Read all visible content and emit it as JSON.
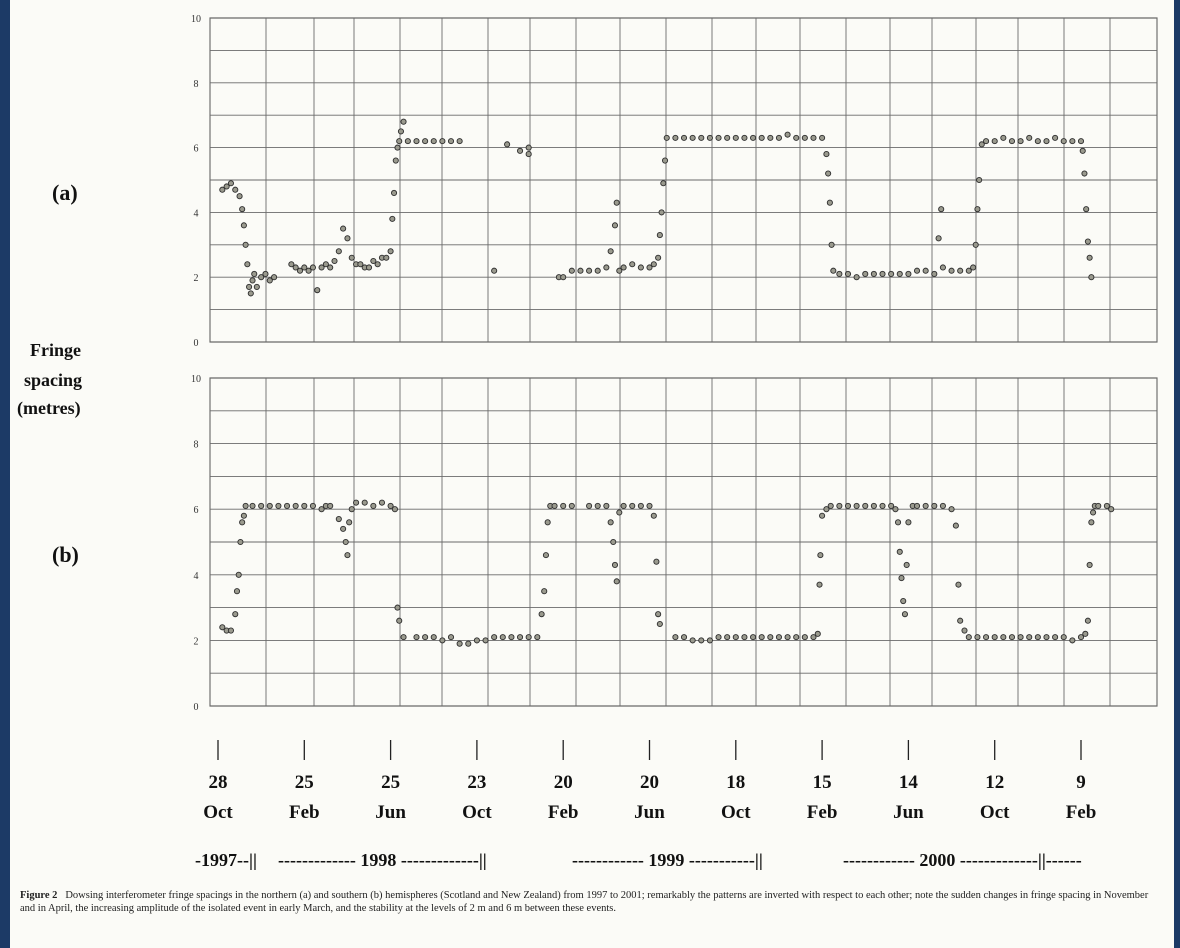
{
  "caption": {
    "label": "Figure 2",
    "text": "Dowsing interferometer fringe spacings in the northern (a) and southern (b) hemispheres (Scotland and New Zealand) from 1997 to 2001; remarkably the patterns are inverted with respect to each other; note the sudden changes in fringe spacing in November and in April, the increasing amplitude of the isolated event in early March, and the stability at the levels of 2 m and 6 m between these events."
  },
  "ylabel_lines": [
    "Fringe",
    "spacing",
    "(metres)"
  ],
  "date_ticks": [
    {
      "day": "28",
      "month": "Oct"
    },
    {
      "day": "25",
      "month": "Feb"
    },
    {
      "day": "25",
      "month": "Jun"
    },
    {
      "day": "23",
      "month": "Oct"
    },
    {
      "day": "20",
      "month": "Feb"
    },
    {
      "day": "20",
      "month": "Jun"
    },
    {
      "day": "18",
      "month": "Oct"
    },
    {
      "day": "15",
      "month": "Feb"
    },
    {
      "day": "14",
      "month": "Jun"
    },
    {
      "day": "12",
      "month": "Oct"
    },
    {
      "day": "9",
      "month": "Feb"
    }
  ],
  "year_bar": [
    "-1997--||",
    "------------- 1998 -------------||",
    "------------ 1999 -----------||",
    "------------ 2000 -------------||------"
  ],
  "chart_data": [
    {
      "type": "scatter",
      "panel_label": "(a)",
      "ylim": [
        0,
        10
      ],
      "yticks": [
        "0",
        "2",
        "4",
        "6",
        "8",
        "10"
      ],
      "xlim": [
        0,
        11.2
      ],
      "grid": true,
      "x_unit": "tick index (28 Oct 1997 = 0, each step ≈ 4 months)",
      "points": [
        [
          0.05,
          4.7
        ],
        [
          0.1,
          4.8
        ],
        [
          0.15,
          4.9
        ],
        [
          0.2,
          4.7
        ],
        [
          0.25,
          4.5
        ],
        [
          0.28,
          4.1
        ],
        [
          0.3,
          3.6
        ],
        [
          0.32,
          3.0
        ],
        [
          0.34,
          2.4
        ],
        [
          0.36,
          1.7
        ],
        [
          0.38,
          1.5
        ],
        [
          0.4,
          1.9
        ],
        [
          0.42,
          2.1
        ],
        [
          0.45,
          1.7
        ],
        [
          0.5,
          2.0
        ],
        [
          0.55,
          2.1
        ],
        [
          0.6,
          1.9
        ],
        [
          0.65,
          2.0
        ],
        [
          0.85,
          2.4
        ],
        [
          0.9,
          2.3
        ],
        [
          0.95,
          2.2
        ],
        [
          1.0,
          2.3
        ],
        [
          1.05,
          2.2
        ],
        [
          1.1,
          2.3
        ],
        [
          1.15,
          1.6
        ],
        [
          1.2,
          2.3
        ],
        [
          1.25,
          2.4
        ],
        [
          1.3,
          2.3
        ],
        [
          1.35,
          2.5
        ],
        [
          1.4,
          2.8
        ],
        [
          1.45,
          3.5
        ],
        [
          1.5,
          3.2
        ],
        [
          1.55,
          2.6
        ],
        [
          1.6,
          2.4
        ],
        [
          1.65,
          2.4
        ],
        [
          1.7,
          2.3
        ],
        [
          1.75,
          2.3
        ],
        [
          1.8,
          2.5
        ],
        [
          1.85,
          2.4
        ],
        [
          1.9,
          2.6
        ],
        [
          1.95,
          2.6
        ],
        [
          2.0,
          2.8
        ],
        [
          2.02,
          3.8
        ],
        [
          2.04,
          4.6
        ],
        [
          2.06,
          5.6
        ],
        [
          2.08,
          6.0
        ],
        [
          2.1,
          6.2
        ],
        [
          2.12,
          6.5
        ],
        [
          2.15,
          6.8
        ],
        [
          2.2,
          6.2
        ],
        [
          2.3,
          6.2
        ],
        [
          2.4,
          6.2
        ],
        [
          2.5,
          6.2
        ],
        [
          2.6,
          6.2
        ],
        [
          2.7,
          6.2
        ],
        [
          2.8,
          6.2
        ],
        [
          3.2,
          2.2
        ],
        [
          3.35,
          6.1
        ],
        [
          3.5,
          5.9
        ],
        [
          3.6,
          5.8
        ],
        [
          3.6,
          6.0
        ],
        [
          3.95,
          2.0
        ],
        [
          4.0,
          2.0
        ],
        [
          4.1,
          2.2
        ],
        [
          4.2,
          2.2
        ],
        [
          4.3,
          2.2
        ],
        [
          4.4,
          2.2
        ],
        [
          4.5,
          2.3
        ],
        [
          4.55,
          2.8
        ],
        [
          4.6,
          3.6
        ],
        [
          4.62,
          4.3
        ],
        [
          4.65,
          2.2
        ],
        [
          4.7,
          2.3
        ],
        [
          4.8,
          2.4
        ],
        [
          4.9,
          2.3
        ],
        [
          5.0,
          2.3
        ],
        [
          5.05,
          2.4
        ],
        [
          5.1,
          2.6
        ],
        [
          5.12,
          3.3
        ],
        [
          5.14,
          4.0
        ],
        [
          5.16,
          4.9
        ],
        [
          5.18,
          5.6
        ],
        [
          5.2,
          6.3
        ],
        [
          5.3,
          6.3
        ],
        [
          5.4,
          6.3
        ],
        [
          5.5,
          6.3
        ],
        [
          5.6,
          6.3
        ],
        [
          5.7,
          6.3
        ],
        [
          5.8,
          6.3
        ],
        [
          5.9,
          6.3
        ],
        [
          6.0,
          6.3
        ],
        [
          6.1,
          6.3
        ],
        [
          6.2,
          6.3
        ],
        [
          6.3,
          6.3
        ],
        [
          6.4,
          6.3
        ],
        [
          6.5,
          6.3
        ],
        [
          6.6,
          6.4
        ],
        [
          6.7,
          6.3
        ],
        [
          6.8,
          6.3
        ],
        [
          6.9,
          6.3
        ],
        [
          7.0,
          6.3
        ],
        [
          7.05,
          5.8
        ],
        [
          7.07,
          5.2
        ],
        [
          7.09,
          4.3
        ],
        [
          7.11,
          3.0
        ],
        [
          7.13,
          2.2
        ],
        [
          7.2,
          2.1
        ],
        [
          7.3,
          2.1
        ],
        [
          7.4,
          2.0
        ],
        [
          7.5,
          2.1
        ],
        [
          7.6,
          2.1
        ],
        [
          7.7,
          2.1
        ],
        [
          7.8,
          2.1
        ],
        [
          7.9,
          2.1
        ],
        [
          8.0,
          2.1
        ],
        [
          8.1,
          2.2
        ],
        [
          8.2,
          2.2
        ],
        [
          8.3,
          2.1
        ],
        [
          8.35,
          3.2
        ],
        [
          8.38,
          4.1
        ],
        [
          8.4,
          2.3
        ],
        [
          8.5,
          2.2
        ],
        [
          8.6,
          2.2
        ],
        [
          8.7,
          2.2
        ],
        [
          8.75,
          2.3
        ],
        [
          8.78,
          3.0
        ],
        [
          8.8,
          4.1
        ],
        [
          8.82,
          5.0
        ],
        [
          8.85,
          6.1
        ],
        [
          8.9,
          6.2
        ],
        [
          9.0,
          6.2
        ],
        [
          9.1,
          6.3
        ],
        [
          9.2,
          6.2
        ],
        [
          9.3,
          6.2
        ],
        [
          9.4,
          6.3
        ],
        [
          9.5,
          6.2
        ],
        [
          9.6,
          6.2
        ],
        [
          9.7,
          6.3
        ],
        [
          9.8,
          6.2
        ],
        [
          9.9,
          6.2
        ],
        [
          10.0,
          6.2
        ],
        [
          10.02,
          5.9
        ],
        [
          10.04,
          5.2
        ],
        [
          10.06,
          4.1
        ],
        [
          10.08,
          3.1
        ],
        [
          10.1,
          2.6
        ],
        [
          10.12,
          2.0
        ]
      ]
    },
    {
      "type": "scatter",
      "panel_label": "(b)",
      "ylim": [
        0,
        10
      ],
      "yticks": [
        "0",
        "2",
        "4",
        "6",
        "8",
        "10"
      ],
      "xlim": [
        0,
        11.2
      ],
      "grid": true,
      "x_unit": "tick index (28 Oct 1997 = 0, each step ≈ 4 months)",
      "points": [
        [
          0.05,
          2.4
        ],
        [
          0.1,
          2.3
        ],
        [
          0.15,
          2.3
        ],
        [
          0.2,
          2.8
        ],
        [
          0.22,
          3.5
        ],
        [
          0.24,
          4.0
        ],
        [
          0.26,
          5.0
        ],
        [
          0.28,
          5.6
        ],
        [
          0.3,
          5.8
        ],
        [
          0.32,
          6.1
        ],
        [
          0.4,
          6.1
        ],
        [
          0.5,
          6.1
        ],
        [
          0.6,
          6.1
        ],
        [
          0.7,
          6.1
        ],
        [
          0.8,
          6.1
        ],
        [
          0.9,
          6.1
        ],
        [
          1.0,
          6.1
        ],
        [
          1.1,
          6.1
        ],
        [
          1.2,
          6.0
        ],
        [
          1.25,
          6.1
        ],
        [
          1.3,
          6.1
        ],
        [
          1.4,
          5.7
        ],
        [
          1.45,
          5.4
        ],
        [
          1.48,
          5.0
        ],
        [
          1.5,
          4.6
        ],
        [
          1.52,
          5.6
        ],
        [
          1.55,
          6.0
        ],
        [
          1.6,
          6.2
        ],
        [
          1.7,
          6.2
        ],
        [
          1.8,
          6.1
        ],
        [
          1.9,
          6.2
        ],
        [
          2.0,
          6.1
        ],
        [
          2.05,
          6.0
        ],
        [
          2.08,
          3.0
        ],
        [
          2.1,
          2.6
        ],
        [
          2.15,
          2.1
        ],
        [
          2.3,
          2.1
        ],
        [
          2.4,
          2.1
        ],
        [
          2.5,
          2.1
        ],
        [
          2.6,
          2.0
        ],
        [
          2.7,
          2.1
        ],
        [
          2.8,
          1.9
        ],
        [
          2.9,
          1.9
        ],
        [
          3.0,
          2.0
        ],
        [
          3.1,
          2.0
        ],
        [
          3.2,
          2.1
        ],
        [
          3.3,
          2.1
        ],
        [
          3.4,
          2.1
        ],
        [
          3.5,
          2.1
        ],
        [
          3.6,
          2.1
        ],
        [
          3.7,
          2.1
        ],
        [
          3.75,
          2.8
        ],
        [
          3.78,
          3.5
        ],
        [
          3.8,
          4.6
        ],
        [
          3.82,
          5.6
        ],
        [
          3.85,
          6.1
        ],
        [
          3.9,
          6.1
        ],
        [
          4.0,
          6.1
        ],
        [
          4.1,
          6.1
        ],
        [
          4.3,
          6.1
        ],
        [
          4.4,
          6.1
        ],
        [
          4.5,
          6.1
        ],
        [
          4.55,
          5.6
        ],
        [
          4.58,
          5.0
        ],
        [
          4.6,
          4.3
        ],
        [
          4.62,
          3.8
        ],
        [
          4.65,
          5.9
        ],
        [
          4.7,
          6.1
        ],
        [
          4.8,
          6.1
        ],
        [
          4.9,
          6.1
        ],
        [
          5.0,
          6.1
        ],
        [
          5.05,
          5.8
        ],
        [
          5.08,
          4.4
        ],
        [
          5.1,
          2.8
        ],
        [
          5.12,
          2.5
        ],
        [
          5.3,
          2.1
        ],
        [
          5.4,
          2.1
        ],
        [
          5.5,
          2.0
        ],
        [
          5.6,
          2.0
        ],
        [
          5.7,
          2.0
        ],
        [
          5.8,
          2.1
        ],
        [
          5.9,
          2.1
        ],
        [
          6.0,
          2.1
        ],
        [
          6.1,
          2.1
        ],
        [
          6.2,
          2.1
        ],
        [
          6.3,
          2.1
        ],
        [
          6.4,
          2.1
        ],
        [
          6.5,
          2.1
        ],
        [
          6.6,
          2.1
        ],
        [
          6.7,
          2.1
        ],
        [
          6.8,
          2.1
        ],
        [
          6.9,
          2.1
        ],
        [
          6.95,
          2.2
        ],
        [
          6.97,
          3.7
        ],
        [
          6.98,
          4.6
        ],
        [
          7.0,
          5.8
        ],
        [
          7.05,
          6.0
        ],
        [
          7.1,
          6.1
        ],
        [
          7.2,
          6.1
        ],
        [
          7.3,
          6.1
        ],
        [
          7.4,
          6.1
        ],
        [
          7.5,
          6.1
        ],
        [
          7.6,
          6.1
        ],
        [
          7.7,
          6.1
        ],
        [
          7.8,
          6.1
        ],
        [
          7.85,
          6.0
        ],
        [
          7.88,
          5.6
        ],
        [
          7.9,
          4.7
        ],
        [
          7.92,
          3.9
        ],
        [
          7.94,
          3.2
        ],
        [
          7.96,
          2.8
        ],
        [
          7.98,
          4.3
        ],
        [
          8.0,
          5.6
        ],
        [
          8.05,
          6.1
        ],
        [
          8.1,
          6.1
        ],
        [
          8.2,
          6.1
        ],
        [
          8.3,
          6.1
        ],
        [
          8.4,
          6.1
        ],
        [
          8.5,
          6.0
        ],
        [
          8.55,
          5.5
        ],
        [
          8.58,
          3.7
        ],
        [
          8.6,
          2.6
        ],
        [
          8.65,
          2.3
        ],
        [
          8.7,
          2.1
        ],
        [
          8.8,
          2.1
        ],
        [
          8.9,
          2.1
        ],
        [
          9.0,
          2.1
        ],
        [
          9.1,
          2.1
        ],
        [
          9.2,
          2.1
        ],
        [
          9.3,
          2.1
        ],
        [
          9.4,
          2.1
        ],
        [
          9.5,
          2.1
        ],
        [
          9.6,
          2.1
        ],
        [
          9.7,
          2.1
        ],
        [
          9.8,
          2.1
        ],
        [
          9.9,
          2.0
        ],
        [
          10.0,
          2.1
        ],
        [
          10.05,
          2.2
        ],
        [
          10.08,
          2.6
        ],
        [
          10.1,
          4.3
        ],
        [
          10.12,
          5.6
        ],
        [
          10.14,
          5.9
        ],
        [
          10.16,
          6.1
        ],
        [
          10.2,
          6.1
        ],
        [
          10.3,
          6.1
        ],
        [
          10.35,
          6.0
        ]
      ]
    }
  ]
}
